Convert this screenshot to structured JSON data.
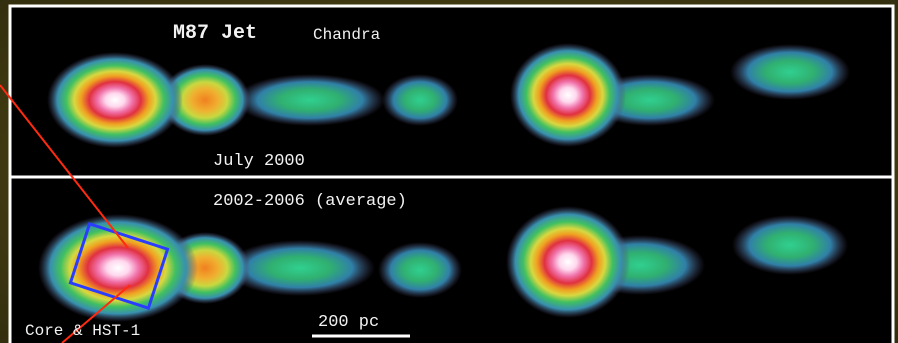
{
  "image": {
    "title": "M87 Jet",
    "instrument": "Chandra",
    "panel_top_label": "July 2000",
    "panel_bottom_label": "2002-2006 (average)",
    "region_label": "Core & HST-1",
    "scale_label": "200 pc"
  }
}
